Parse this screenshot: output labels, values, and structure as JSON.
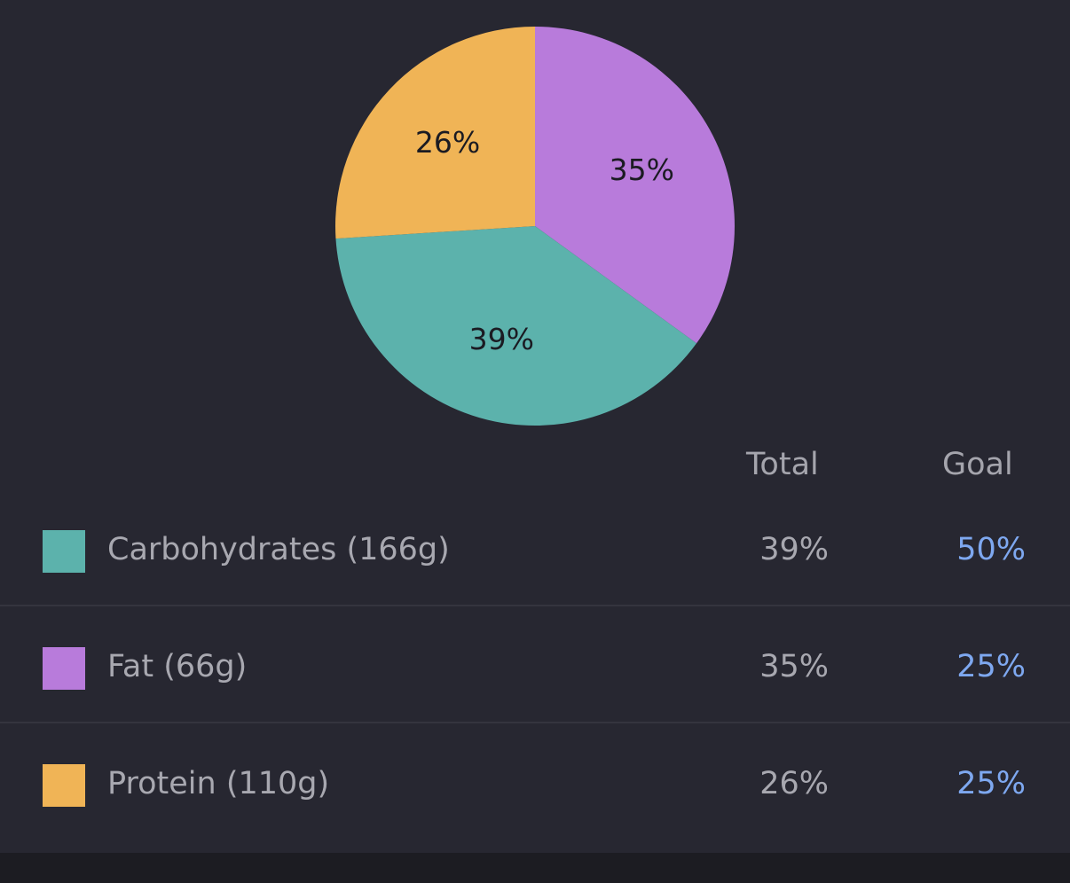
{
  "chart_data": {
    "type": "pie",
    "slices": [
      {
        "name": "Carbohydrates",
        "value": 39,
        "label": "39%",
        "color": "#5cb2ac"
      },
      {
        "name": "Fat",
        "value": 35,
        "label": "35%",
        "color": "#b87bdb"
      },
      {
        "name": "Protein",
        "value": 26,
        "label": "26%",
        "color": "#f0b456"
      }
    ]
  },
  "table": {
    "headers": {
      "total": "Total",
      "goal": "Goal"
    },
    "rows": [
      {
        "label": "Carbohydrates (166g)",
        "total": "39%",
        "goal": "50%",
        "color": "#5cb2ac"
      },
      {
        "label": "Fat (66g)",
        "total": "35%",
        "goal": "25%",
        "color": "#b87bdb"
      },
      {
        "label": "Protein (110g)",
        "total": "26%",
        "goal": "25%",
        "color": "#f0b456"
      }
    ]
  }
}
